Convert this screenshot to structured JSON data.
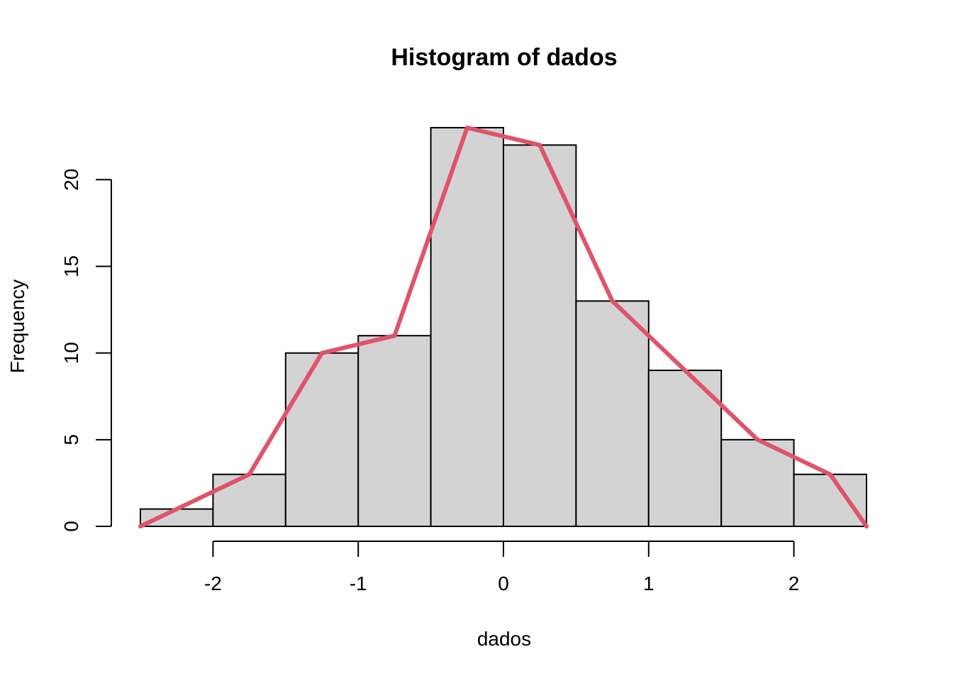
{
  "chart_data": {
    "type": "bar",
    "subtype": "histogram",
    "title": "Histogram of dados",
    "xlabel": "dados",
    "ylabel": "Frequency",
    "bins": [
      {
        "start": -2.5,
        "end": -2.0,
        "count": 1
      },
      {
        "start": -2.0,
        "end": -1.5,
        "count": 3
      },
      {
        "start": -1.5,
        "end": -1.0,
        "count": 10
      },
      {
        "start": -1.0,
        "end": -0.5,
        "count": 11
      },
      {
        "start": -0.5,
        "end": 0.0,
        "count": 23
      },
      {
        "start": 0.0,
        "end": 0.5,
        "count": 22
      },
      {
        "start": 0.5,
        "end": 1.0,
        "count": 13
      },
      {
        "start": 1.0,
        "end": 1.5,
        "count": 9
      },
      {
        "start": 1.5,
        "end": 2.0,
        "count": 5
      },
      {
        "start": 2.0,
        "end": 2.5,
        "count": 3
      }
    ],
    "frequency_polygon": {
      "color": "#df536b",
      "x": [
        -2.5,
        -1.75,
        -1.25,
        -0.75,
        -0.25,
        0.25,
        0.75,
        1.25,
        1.75,
        2.25,
        2.5
      ],
      "y": [
        0,
        3,
        10,
        11,
        23,
        22,
        13,
        9,
        5,
        3,
        0
      ]
    },
    "x_ticks": [
      -2,
      -1,
      0,
      1,
      2
    ],
    "x_tick_labels": [
      "-2",
      "-1",
      "0",
      "1",
      "2"
    ],
    "y_ticks": [
      0,
      5,
      10,
      15,
      20
    ],
    "y_tick_labels": [
      "0",
      "5",
      "10",
      "15",
      "20"
    ],
    "xlim": [
      -2.5,
      2.5
    ],
    "ylim": [
      0,
      23
    ],
    "grid": false,
    "colors": {
      "bar_fill": "#d3d3d3",
      "bar_stroke": "#000000",
      "line": "#df536b"
    }
  }
}
